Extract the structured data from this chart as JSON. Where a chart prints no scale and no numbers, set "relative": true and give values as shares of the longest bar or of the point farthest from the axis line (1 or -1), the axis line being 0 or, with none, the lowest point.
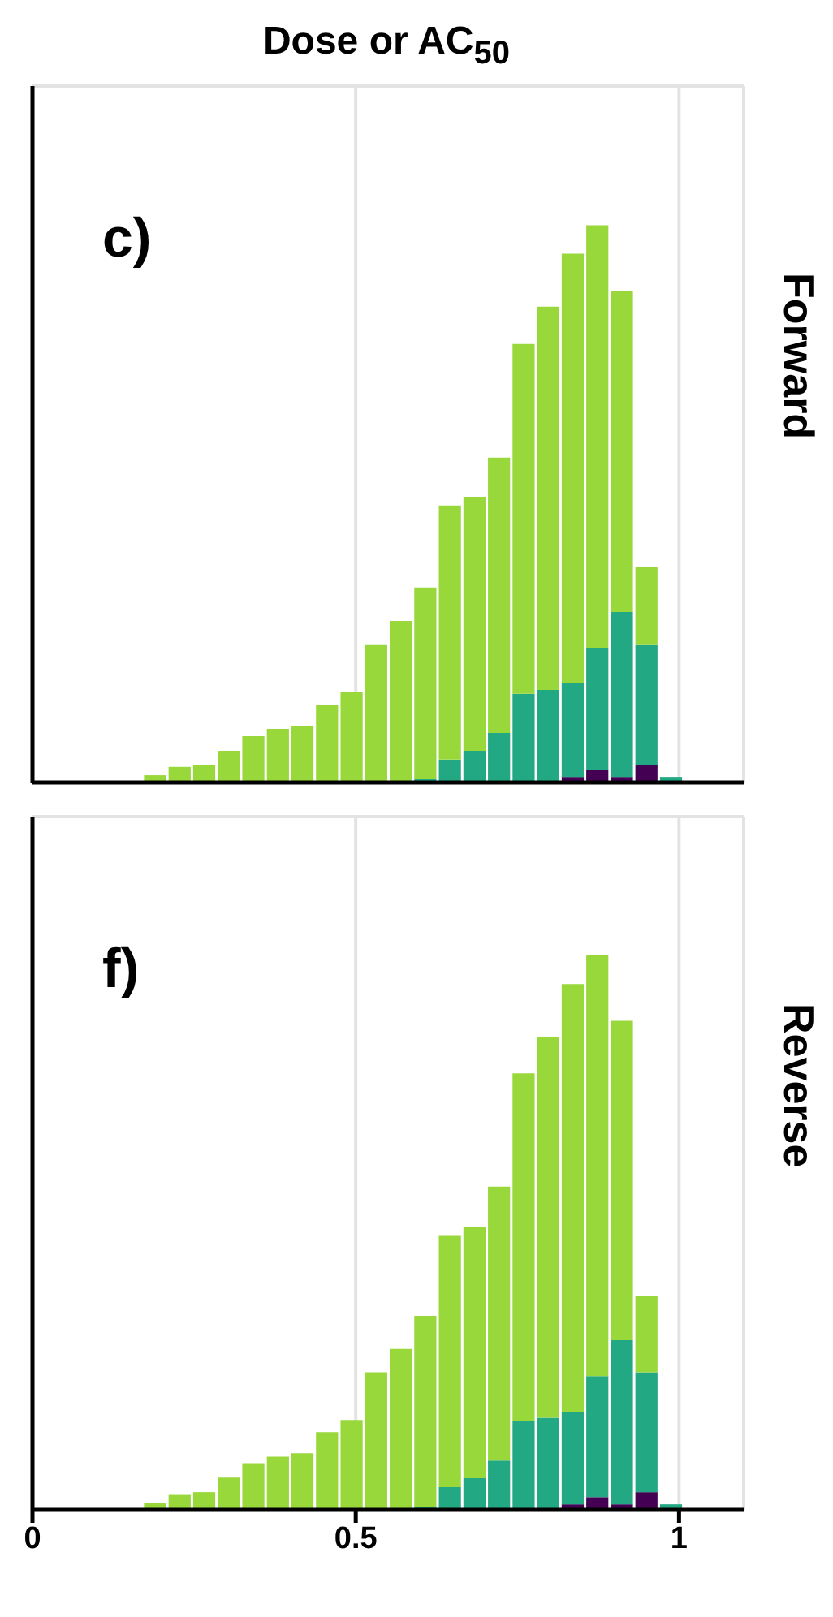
{
  "chart_data": [
    {
      "type": "bar",
      "title": "Dose or AC$_{50}$",
      "annotations": [
        "c)",
        "Forward"
      ],
      "relative": true,
      "stacked": true,
      "xlim": [
        0,
        1.1
      ],
      "xticks": [
        0,
        0.5,
        1
      ],
      "grid": true,
      "tick_labels": false,
      "x": [
        0.189,
        0.227,
        0.265,
        0.303,
        0.341,
        0.379,
        0.417,
        0.455,
        0.493,
        0.531,
        0.569,
        0.607,
        0.645,
        0.683,
        0.721,
        0.759,
        0.797,
        0.835,
        0.873,
        0.911,
        0.949,
        0.987
      ],
      "series": [
        {
          "color": "#440154",
          "values": [
            0,
            0,
            0,
            0,
            0,
            0,
            0,
            0,
            0,
            0,
            0,
            0,
            0,
            0,
            0,
            0,
            0,
            0.01,
            0.023,
            0.01,
            0.032,
            0
          ]
        },
        {
          "color": "#23a884",
          "values": [
            0,
            0,
            0,
            0,
            0,
            0,
            0,
            0,
            0,
            0,
            0,
            0.006,
            0.041,
            0.057,
            0.089,
            0.159,
            0.166,
            0.168,
            0.219,
            0.296,
            0.216,
            0.01
          ]
        },
        {
          "color": "#99d83a",
          "values": [
            0.013,
            0.028,
            0.032,
            0.057,
            0.083,
            0.096,
            0.102,
            0.14,
            0.162,
            0.248,
            0.29,
            0.344,
            0.456,
            0.456,
            0.494,
            0.628,
            0.688,
            0.771,
            0.758,
            0.576,
            0.138,
            0
          ]
        }
      ]
    },
    {
      "type": "bar",
      "annotations": [
        "f)",
        "Reverse"
      ],
      "relative": true,
      "stacked": true,
      "xlim": [
        0,
        1.1
      ],
      "xticks": [
        0,
        0.5,
        1
      ],
      "grid": true,
      "tick_labels": "x",
      "x": [
        0.189,
        0.227,
        0.265,
        0.303,
        0.341,
        0.379,
        0.417,
        0.455,
        0.493,
        0.531,
        0.569,
        0.607,
        0.645,
        0.683,
        0.721,
        0.759,
        0.797,
        0.835,
        0.873,
        0.911,
        0.949,
        0.987
      ],
      "series": [
        {
          "color": "#440154",
          "values": [
            0,
            0,
            0,
            0,
            0,
            0,
            0,
            0,
            0,
            0,
            0,
            0,
            0,
            0,
            0,
            0,
            0,
            0.01,
            0.023,
            0.01,
            0.032,
            0
          ]
        },
        {
          "color": "#23a884",
          "values": [
            0,
            0,
            0,
            0,
            0,
            0,
            0,
            0,
            0,
            0,
            0,
            0.006,
            0.041,
            0.057,
            0.089,
            0.16,
            0.166,
            0.167,
            0.218,
            0.296,
            0.216,
            0.01
          ]
        },
        {
          "color": "#99d83a",
          "values": [
            0.012,
            0.027,
            0.032,
            0.058,
            0.084,
            0.096,
            0.102,
            0.14,
            0.162,
            0.248,
            0.29,
            0.344,
            0.453,
            0.453,
            0.494,
            0.627,
            0.687,
            0.771,
            0.759,
            0.576,
            0.137,
            0
          ]
        }
      ]
    }
  ]
}
